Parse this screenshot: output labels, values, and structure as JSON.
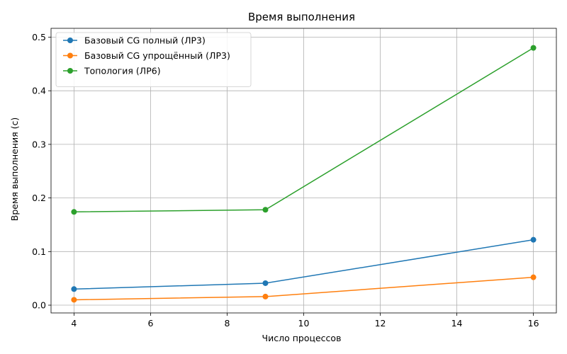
{
  "chart_data": {
    "type": "line",
    "title": "Время выполнения",
    "xlabel": "Число процессов",
    "ylabel": "Время выполнения (с)",
    "xlim": [
      3.4,
      16.6
    ],
    "ylim": [
      -0.0145,
      0.5165
    ],
    "xticks": [
      4,
      6,
      8,
      10,
      12,
      14,
      16
    ],
    "yticks": [
      0.0,
      0.1,
      0.2,
      0.3,
      0.4,
      0.5
    ],
    "grid": true,
    "legend_position": "top-left",
    "series": [
      {
        "name": "Базовый CG полный (ЛР3)",
        "color": "#1f77b4",
        "x": [
          4,
          9,
          16
        ],
        "y": [
          0.03,
          0.041,
          0.122
        ]
      },
      {
        "name": "Базовый CG упрощённый (ЛР3)",
        "color": "#ff7f0e",
        "x": [
          4,
          9,
          16
        ],
        "y": [
          0.01,
          0.016,
          0.052
        ]
      },
      {
        "name": "Топология (ЛР6)",
        "color": "#2ca02c",
        "x": [
          4,
          9,
          16
        ],
        "y": [
          0.174,
          0.178,
          0.48
        ]
      }
    ]
  }
}
